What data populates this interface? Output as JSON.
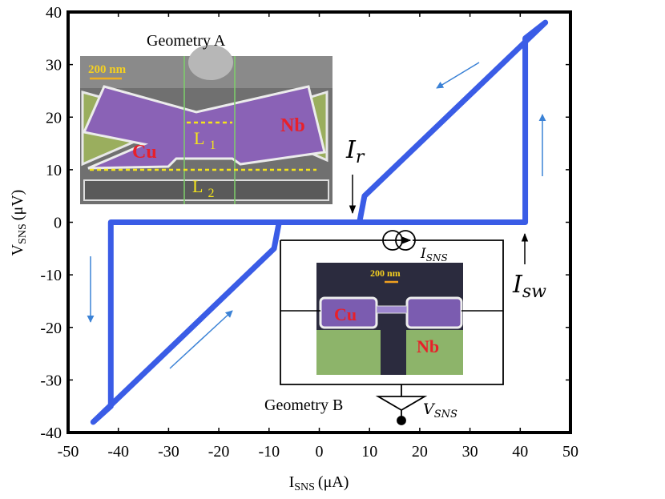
{
  "chart_data": {
    "type": "line",
    "x_label": {
      "main": "I",
      "sub": "SNS",
      "unit": "(μA)"
    },
    "y_label": {
      "main": "V",
      "sub": "SNS",
      "unit": "(μV)"
    },
    "xlim": [
      -50,
      50
    ],
    "xticks": [
      -50,
      -40,
      -30,
      -20,
      -10,
      0,
      10,
      20,
      30,
      40,
      50
    ],
    "ylim": [
      -40,
      40
    ],
    "yticks": [
      -40,
      -30,
      -20,
      -10,
      0,
      10,
      20,
      30,
      40
    ],
    "series": [
      {
        "color": "#3a5ce6",
        "x": [
          45,
          9,
          8,
          -41.5,
          -41.5,
          -45,
          -9,
          -8,
          41,
          41,
          45
        ],
        "values": [
          38,
          5,
          0,
          0,
          -35,
          -38,
          -5,
          0,
          0,
          35,
          38
        ]
      }
    ],
    "annotations": {
      "geometry_a": "Geometry A",
      "scale_a": "200 nm",
      "nb_a": "Nb",
      "cu_a": "Cu",
      "l1": {
        "main": "L",
        "sub": "1"
      },
      "l2": {
        "main": "L",
        "sub": "2"
      },
      "ir": {
        "main": "I",
        "sub": "r"
      },
      "isw": {
        "main": "I",
        "sub": "sw"
      },
      "isns": {
        "main": "I",
        "sub": "SNS"
      },
      "vsns": {
        "main": "V",
        "sub": "SNS"
      },
      "geometry_b": "Geometry B",
      "scale_b": "200 nm",
      "cu_b": "Cu",
      "nb_b": "Nb"
    }
  }
}
